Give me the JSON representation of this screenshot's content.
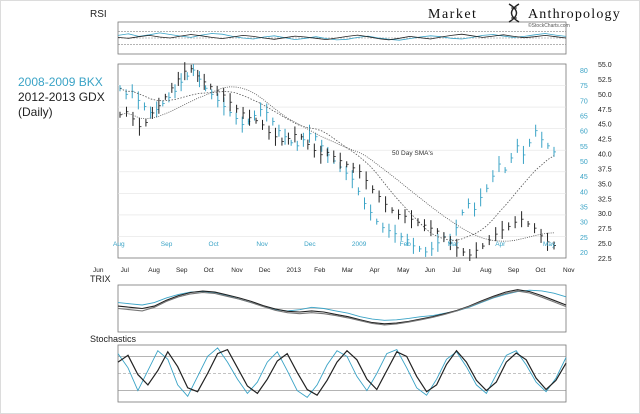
{
  "brand": {
    "name_left": "Market",
    "name_right": "Anthropology",
    "site": "©StockCharts.com",
    "logo_icon": "dna-helix-icon"
  },
  "colors": {
    "bkx": "#3aa3c6",
    "gdx": "#222222",
    "ma_line": "#555555",
    "grid": "#999999",
    "panel_bg": "#f7f7f7"
  },
  "chart_data": [
    {
      "type": "line",
      "panel": "RSI",
      "title": "RSI",
      "xlabel": "",
      "ylabel": "",
      "grid": true,
      "reference_lines": [
        70,
        50,
        30
      ],
      "series": [
        {
          "values": [
            58,
            63,
            55,
            60,
            66,
            61,
            56,
            52,
            59,
            64,
            62,
            55,
            50,
            47,
            53,
            57,
            51,
            45,
            49,
            54,
            48,
            44,
            46,
            52,
            56,
            50,
            46,
            43,
            48,
            53,
            57,
            54,
            49,
            47,
            52,
            58,
            61,
            56,
            52,
            55,
            60,
            64,
            59,
            55
          ]
        },
        {
          "values": [
            52,
            49,
            54,
            58,
            53,
            50,
            56,
            61,
            57,
            52,
            48,
            53,
            58,
            55,
            50,
            46,
            51,
            56,
            53,
            49,
            45,
            50,
            55,
            59,
            54,
            48,
            44,
            49,
            55,
            51,
            47,
            53,
            58,
            62,
            57,
            52,
            56,
            60,
            55,
            51,
            54,
            58,
            54,
            50
          ]
        }
      ]
    },
    {
      "type": "line",
      "panel": "price",
      "title": "",
      "legend": [
        "2008-2009 BKX",
        "2012-2013 GDX"
      ],
      "note": "(Daily)",
      "annotation": "50 Day SMA's",
      "grid": true,
      "legend_position": "top-left",
      "x_top_ticks": [
        "Aug",
        "Sep",
        "Oct",
        "Nov",
        "Dec",
        "2009",
        "Feb",
        "Mar",
        "Apr",
        "May"
      ],
      "x_bottom_ticks": [
        "Jun",
        "Jul",
        "Aug",
        "Sep",
        "Oct",
        "Nov",
        "Dec",
        "2013",
        "Feb",
        "Mar",
        "Apr",
        "May",
        "Jun",
        "Jul",
        "Aug",
        "Sep",
        "Oct",
        "Nov"
      ],
      "y_left_ticks": [
        "80",
        "75",
        "70",
        "65",
        "60",
        "55",
        "50",
        "45",
        "40",
        "35",
        "30",
        "25",
        "20"
      ],
      "y_right_ticks": [
        "55.0",
        "52.5",
        "50.0",
        "47.5",
        "45.0",
        "42.5",
        "40.0",
        "37.5",
        "35.0",
        "32.5",
        "30.0",
        "27.5",
        "25.0",
        "22.5"
      ],
      "ylim_left": [
        18,
        82
      ],
      "ylim_right": [
        22.5,
        55.0
      ],
      "series": [
        {
          "name": "2008-2009 BKX",
          "values": [
            74,
            72,
            73,
            70,
            68,
            66,
            67,
            69,
            71,
            73,
            76,
            78,
            80,
            77,
            74,
            72,
            70,
            68,
            66,
            64,
            62,
            63,
            65,
            67,
            66,
            63,
            60,
            58,
            56,
            55,
            57,
            59,
            58,
            55,
            52,
            50,
            48,
            46,
            44,
            40,
            36,
            33,
            30,
            28,
            27,
            26,
            25,
            24,
            22,
            21,
            20,
            21,
            23,
            25,
            24,
            28,
            33,
            36,
            34,
            38,
            41,
            45,
            49,
            47,
            51,
            55,
            52,
            56,
            60,
            57,
            55,
            53
          ]
        },
        {
          "name": "2012-2013 GDX",
          "values": [
            46.5,
            47.0,
            45.8,
            44.5,
            45.2,
            46.8,
            48.0,
            49.5,
            51.0,
            52.5,
            53.8,
            54.2,
            53.0,
            52.0,
            51.2,
            50.5,
            49.8,
            48.6,
            47.5,
            46.8,
            46.0,
            45.5,
            44.8,
            43.5,
            42.8,
            42.0,
            42.5,
            43.2,
            42.8,
            41.5,
            40.5,
            39.8,
            40.2,
            39.5,
            38.8,
            38.2,
            37.6,
            37.0,
            35.5,
            34.0,
            32.8,
            31.5,
            30.5,
            29.8,
            29.5,
            29.0,
            28.5,
            28.0,
            27.5,
            27.0,
            26.0,
            25.0,
            24.2,
            23.5,
            23.0,
            23.8,
            24.5,
            25.5,
            26.5,
            27.2,
            27.8,
            28.5,
            29.0,
            28.2,
            27.5,
            26.2,
            25.2,
            24.6
          ]
        }
      ]
    },
    {
      "type": "line",
      "panel": "TRIX",
      "title": "TRIX",
      "grid": true,
      "series": [
        {
          "values": [
            0.25,
            0.2,
            0.15,
            0.25,
            0.45,
            0.6,
            0.7,
            0.72,
            0.68,
            0.55,
            0.4,
            0.25,
            0.1,
            -0.05,
            -0.1,
            -0.05,
            0.05,
            0.0,
            -0.1,
            -0.2,
            -0.35,
            -0.45,
            -0.5,
            -0.48,
            -0.42,
            -0.35,
            -0.3,
            -0.2,
            -0.1,
            0.05,
            0.25,
            0.45,
            0.6,
            0.72,
            0.78,
            0.75,
            0.65,
            0.5
          ]
        },
        {
          "values": [
            0.1,
            0.05,
            0.0,
            0.1,
            0.35,
            0.55,
            0.68,
            0.74,
            0.7,
            0.58,
            0.45,
            0.3,
            0.12,
            -0.02,
            -0.12,
            -0.15,
            -0.1,
            -0.15,
            -0.25,
            -0.35,
            -0.48,
            -0.6,
            -0.65,
            -0.62,
            -0.55,
            -0.45,
            -0.35,
            -0.22,
            -0.08,
            0.1,
            0.32,
            0.52,
            0.7,
            0.8,
            0.72,
            0.55,
            0.35,
            0.15
          ]
        },
        {
          "values": [
            0.0,
            -0.05,
            -0.1,
            0.05,
            0.3,
            0.5,
            0.62,
            0.68,
            0.64,
            0.52,
            0.4,
            0.25,
            0.08,
            -0.08,
            -0.18,
            -0.22,
            -0.18,
            -0.22,
            -0.3,
            -0.4,
            -0.52,
            -0.64,
            -0.7,
            -0.66,
            -0.58,
            -0.48,
            -0.38,
            -0.25,
            -0.1,
            0.08,
            0.28,
            0.48,
            0.64,
            0.74,
            0.66,
            0.48,
            0.28,
            0.08
          ]
        }
      ]
    },
    {
      "type": "line",
      "panel": "Stochastics",
      "title": "Stochastics",
      "grid": true,
      "reference_lines": [
        80,
        50,
        20
      ],
      "series": [
        {
          "values": [
            85,
            60,
            20,
            55,
            90,
            75,
            30,
            10,
            45,
            80,
            95,
            70,
            40,
            15,
            35,
            70,
            88,
            55,
            20,
            8,
            30,
            65,
            90,
            80,
            45,
            20,
            50,
            85,
            92,
            60,
            25,
            12,
            40,
            75,
            88,
            62,
            30,
            15,
            48,
            82,
            90,
            65,
            35,
            18,
            42,
            78
          ]
        },
        {
          "values": [
            70,
            82,
            48,
            30,
            55,
            88,
            62,
            25,
            18,
            50,
            85,
            92,
            60,
            28,
            15,
            40,
            72,
            85,
            52,
            22,
            12,
            38,
            70,
            90,
            74,
            40,
            22,
            55,
            88,
            80,
            45,
            18,
            30,
            66,
            90,
            70,
            38,
            20,
            35,
            70,
            86,
            74,
            42,
            22,
            38,
            68
          ]
        }
      ]
    }
  ]
}
